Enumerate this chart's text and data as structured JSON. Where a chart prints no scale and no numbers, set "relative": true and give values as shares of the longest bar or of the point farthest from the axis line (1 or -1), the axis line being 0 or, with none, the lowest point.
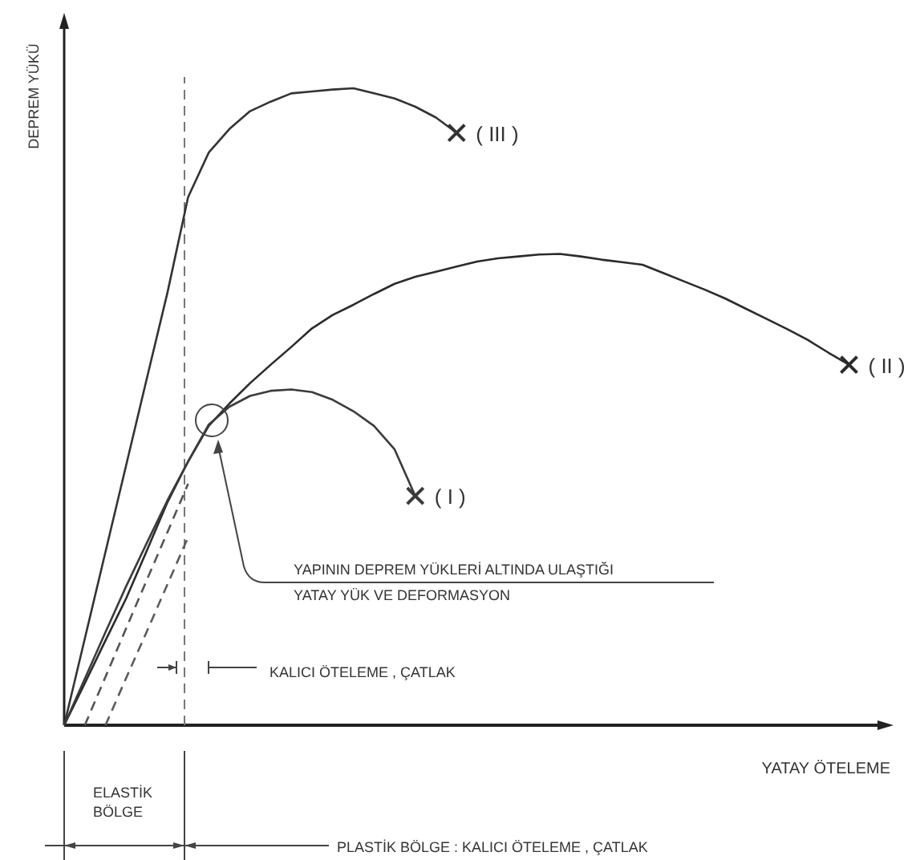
{
  "chart_data": {
    "type": "line",
    "relative": true,
    "xlabel": "YATAY ÖTELEME",
    "ylabel": "DEPREM YÜKÜ",
    "line_style": "solid",
    "categories": [
      null,
      null,
      null,
      null,
      null,
      null,
      null,
      null,
      null,
      null,
      null,
      null,
      null,
      null,
      null,
      null,
      null,
      null,
      null,
      null,
      null,
      null,
      null,
      null,
      null,
      null,
      null,
      null,
      null,
      null,
      null,
      null,
      null,
      null,
      null,
      null,
      null,
      null,
      null
    ],
    "series": [
      {
        "name": "( III )",
        "color": "#333333",
        "values": [
          0,
          0.136,
          0.272,
          0.408,
          0.544,
          0.679,
          0.829,
          0.899,
          0.936,
          0.964,
          0.979,
          0.992,
          0.995,
          0.998,
          1,
          0.992,
          0.984,
          0.971,
          0.954,
          0.93,
          null,
          null,
          null,
          null,
          null,
          null,
          null,
          null,
          null,
          null,
          null,
          null,
          null,
          null,
          null,
          null,
          null,
          null,
          null
        ]
      },
      {
        "name": "( II )",
        "color": "#2b2b2b",
        "values": [
          0,
          0.066,
          0.133,
          0.199,
          0.274,
          0.35,
          0.414,
          0.47,
          0.505,
          0.537,
          0.566,
          0.594,
          0.623,
          0.644,
          0.66,
          0.677,
          0.693,
          0.704,
          0.712,
          0.72,
          0.728,
          0.733,
          0.736,
          0.739,
          0.74,
          0.736,
          0.731,
          0.727,
          0.723,
          0.71,
          0.697,
          0.684,
          0.67,
          0.654,
          0.638,
          0.622,
          0.605,
          0.585,
          0.566
        ]
      },
      {
        "name": "( I )",
        "color": "#3b3b3b",
        "values": [
          0,
          0.073,
          0.146,
          0.218,
          0.286,
          0.353,
          0.414,
          0.472,
          0.5,
          0.517,
          0.525,
          0.527,
          0.523,
          0.511,
          0.493,
          0.47,
          0.433,
          0.36,
          null,
          null,
          null,
          null,
          null,
          null,
          null,
          null,
          null,
          null,
          null,
          null,
          null,
          null,
          null,
          null,
          null,
          null,
          null,
          null,
          null
        ]
      },
      {
        "color": "#555555",
        "line_style": "dashed",
        "values": [
          null,
          0,
          0.076,
          0.152,
          0.228,
          0.303,
          0.379,
          null,
          null,
          null,
          null,
          null,
          null,
          null,
          null,
          null,
          null,
          null,
          null,
          null,
          null,
          null,
          null,
          null,
          null,
          null,
          null,
          null,
          null,
          null,
          null,
          null,
          null,
          null,
          null,
          null,
          null,
          null,
          null
        ]
      },
      {
        "color": "#5c5c5c",
        "line_style": "dashed",
        "values": [
          null,
          null,
          0,
          0.074,
          0.147,
          0.221,
          0.295,
          null,
          null,
          null,
          null,
          null,
          null,
          null,
          null,
          null,
          null,
          null,
          null,
          null,
          null,
          null,
          null,
          null,
          null,
          null,
          null,
          null,
          null,
          null,
          null,
          null,
          null,
          null,
          null,
          null,
          null,
          null,
          null
        ]
      }
    ],
    "annotations": [
      "YAPININ DEPREM YÜKLERİ ALTINDA ULAŞTIĞI\nYATAY YÜK VE DEFORMASYON",
      "KALICI ÖTELEME , ÇATLAK",
      "ELASTİK\nBÖLGE",
      "PLASTİK BÖLGE : KALICI ÖTELEME , ÇATLAK"
    ]
  }
}
